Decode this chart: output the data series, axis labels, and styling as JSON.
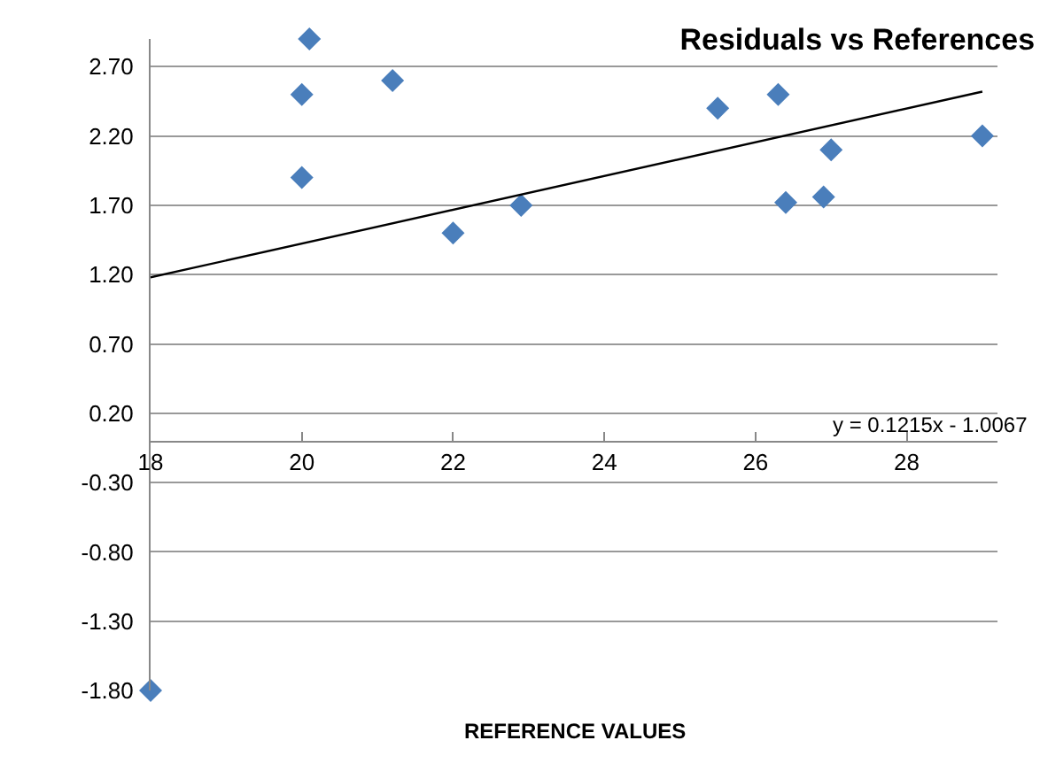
{
  "chart_data": {
    "type": "scatter",
    "title": "Residuals vs References",
    "xlabel": "REFERENCE VALUES",
    "annotations": [
      "y = 0.1215x - 1.0067"
    ],
    "series": [
      {
        "color": "#4a7ebb",
        "x": [
          20.1,
          20.0,
          20.0,
          21.2,
          22.0,
          22.9,
          25.5,
          26.3,
          26.4,
          27.0,
          26.9,
          29.0,
          18.0
        ],
        "values": [
          2.9,
          2.5,
          1.9,
          2.6,
          1.5,
          1.7,
          2.4,
          2.5,
          1.72,
          2.1,
          1.76,
          2.2,
          -1.8
        ]
      },
      {
        "type": "line",
        "color": "#000000",
        "marker": "none",
        "x": [
          18,
          29
        ],
        "values": [
          1.18,
          2.52
        ]
      }
    ],
    "marker": "diamond",
    "grid": "y",
    "legend": false,
    "xlim": [
      18,
      29.2
    ],
    "xticks": [
      18,
      20,
      22,
      24,
      26,
      28
    ],
    "ylim": [
      -1.8,
      2.9
    ],
    "yticks": [
      {
        "value": 2.7,
        "label": "2.70"
      },
      {
        "value": 2.2,
        "label": "2.20"
      },
      {
        "value": 1.7,
        "label": "1.70"
      },
      {
        "value": 1.2,
        "label": "1.20"
      },
      {
        "value": 0.7,
        "label": "0.70"
      },
      {
        "value": 0.2,
        "label": "0.20"
      },
      {
        "value": -0.3,
        "label": "-0.30"
      },
      {
        "value": -0.8,
        "label": "-0.80"
      },
      {
        "value": -1.3,
        "label": "-1.30"
      },
      {
        "value": -1.8,
        "label": "-1.80"
      }
    ]
  }
}
